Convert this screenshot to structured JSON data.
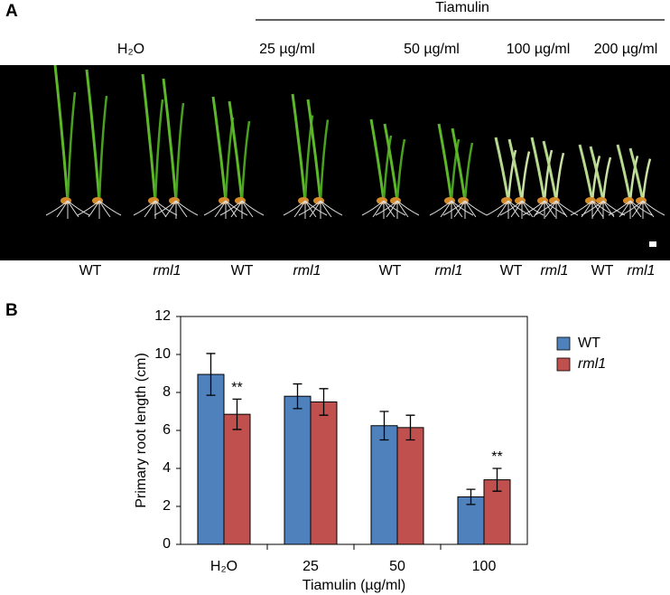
{
  "panel_a": {
    "label": "A",
    "treatment_group": "Tiamulin",
    "conditions": [
      "H₂O",
      "25 µg/ml",
      "50 µg/ml",
      "100 µg/ml",
      "200 µg/ml"
    ],
    "genotype_labels": [
      "WT",
      "rml1",
      "WT",
      "rml1",
      "WT",
      "rml1",
      "WT",
      "rml1",
      "WT",
      "rml1"
    ]
  },
  "chart_data": {
    "type": "bar",
    "panel_label": "B",
    "x_label": "Tiamulin (µg/ml)",
    "y_label": "Primary root length (cm)",
    "categories": [
      "H₂O",
      "25",
      "50",
      "100"
    ],
    "series": [
      {
        "name": "WT",
        "color": "#4f81bd",
        "values": [
          8.95,
          7.8,
          6.25,
          2.5
        ],
        "errors": [
          1.1,
          0.65,
          0.75,
          0.4
        ],
        "significance": [
          null,
          null,
          null,
          null
        ]
      },
      {
        "name": "rml1",
        "color": "#c0504d",
        "values": [
          6.85,
          7.5,
          6.15,
          3.4
        ],
        "errors": [
          0.8,
          0.7,
          0.65,
          0.6
        ],
        "significance": [
          "**",
          null,
          null,
          "**"
        ]
      }
    ],
    "ylim": [
      0,
      12
    ],
    "yticks": [
      0,
      2,
      4,
      6,
      8,
      10,
      12
    ],
    "legend": "top-right"
  }
}
